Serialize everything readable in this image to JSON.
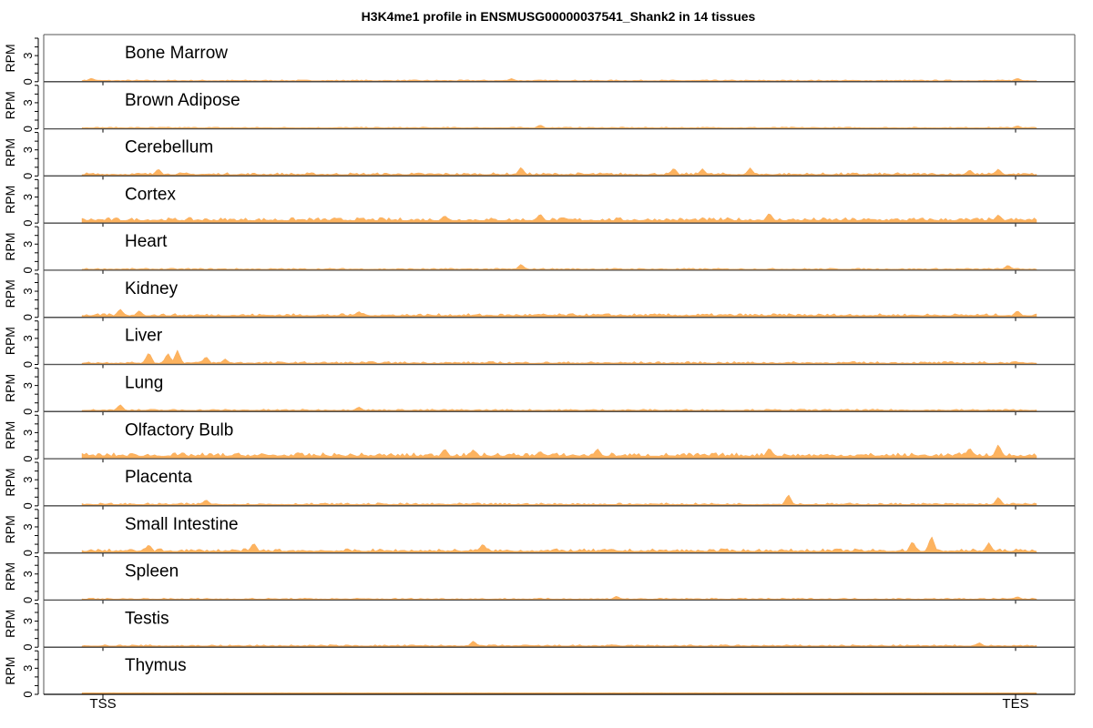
{
  "chart_data": {
    "type": "area",
    "title": "H3K4me1 profile in ENSMUSG00000037541_Shank2 in 14 tissues",
    "ylabel": "RPM",
    "ylim": [
      0,
      5
    ],
    "yticks": [
      0,
      3
    ],
    "xlim": [
      0,
      1
    ],
    "xticks": [
      {
        "label": "TSS",
        "x": 0
      },
      {
        "label": "TES",
        "x": 1
      }
    ],
    "grid": false,
    "colors": {
      "fill": "#fdb35f",
      "stroke": "#f7a24a",
      "axis": "#000000",
      "frame": "#555555"
    },
    "tissues": [
      {
        "name": "Bone Marrow",
        "base": 0.12,
        "noise": 0.1,
        "peaks": [
          [
            0.01,
            0.3
          ],
          [
            0.45,
            0.25
          ],
          [
            0.98,
            0.3
          ]
        ]
      },
      {
        "name": "Brown Adipose",
        "base": 0.12,
        "noise": 0.1,
        "peaks": [
          [
            0.48,
            0.35
          ],
          [
            0.98,
            0.25
          ]
        ]
      },
      {
        "name": "Cerebellum",
        "base": 0.15,
        "noise": 0.25,
        "peaks": [
          [
            0.08,
            0.7
          ],
          [
            0.46,
            0.9
          ],
          [
            0.62,
            0.8
          ],
          [
            0.65,
            0.7
          ],
          [
            0.7,
            0.8
          ],
          [
            0.93,
            0.6
          ],
          [
            0.96,
            0.7
          ]
        ]
      },
      {
        "name": "Cortex",
        "base": 0.3,
        "noise": 0.35,
        "peaks": [
          [
            0.38,
            0.6
          ],
          [
            0.48,
            0.8
          ],
          [
            0.72,
            0.9
          ],
          [
            0.96,
            0.7
          ]
        ]
      },
      {
        "name": "Heart",
        "base": 0.12,
        "noise": 0.12,
        "peaks": [
          [
            0.46,
            0.6
          ],
          [
            0.97,
            0.5
          ]
        ]
      },
      {
        "name": "Kidney",
        "base": 0.2,
        "noise": 0.25,
        "peaks": [
          [
            0.04,
            0.8
          ],
          [
            0.06,
            0.6
          ],
          [
            0.29,
            0.5
          ],
          [
            0.98,
            0.6
          ]
        ]
      },
      {
        "name": "Liver",
        "base": 0.15,
        "noise": 0.2,
        "peaks": [
          [
            0.07,
            1.3
          ],
          [
            0.09,
            1.2
          ],
          [
            0.1,
            1.5
          ],
          [
            0.13,
            0.8
          ],
          [
            0.15,
            0.5
          ]
        ]
      },
      {
        "name": "Lung",
        "base": 0.15,
        "noise": 0.15,
        "peaks": [
          [
            0.04,
            0.7
          ],
          [
            0.29,
            0.4
          ]
        ]
      },
      {
        "name": "Olfactory Bulb",
        "base": 0.3,
        "noise": 0.4,
        "peaks": [
          [
            0.38,
            0.9
          ],
          [
            0.41,
            0.8
          ],
          [
            0.48,
            0.6
          ],
          [
            0.54,
            0.9
          ],
          [
            0.72,
            1.0
          ],
          [
            0.93,
            1.0
          ],
          [
            0.96,
            1.4
          ]
        ]
      },
      {
        "name": "Placenta",
        "base": 0.15,
        "noise": 0.2,
        "peaks": [
          [
            0.13,
            0.6
          ],
          [
            0.74,
            1.2
          ],
          [
            0.96,
            0.9
          ]
        ]
      },
      {
        "name": "Small Intestine",
        "base": 0.2,
        "noise": 0.3,
        "peaks": [
          [
            0.07,
            0.8
          ],
          [
            0.18,
            1.0
          ],
          [
            0.42,
            0.9
          ],
          [
            0.87,
            1.2
          ],
          [
            0.89,
            1.8
          ],
          [
            0.95,
            1.0
          ]
        ]
      },
      {
        "name": "Spleen",
        "base": 0.12,
        "noise": 0.12,
        "peaks": [
          [
            0.56,
            0.35
          ],
          [
            0.98,
            0.3
          ]
        ]
      },
      {
        "name": "Testis",
        "base": 0.15,
        "noise": 0.15,
        "peaks": [
          [
            0.41,
            0.6
          ],
          [
            0.94,
            0.4
          ]
        ]
      },
      {
        "name": "Thymus",
        "base": 0.18,
        "noise": 0.02,
        "peaks": []
      }
    ]
  }
}
